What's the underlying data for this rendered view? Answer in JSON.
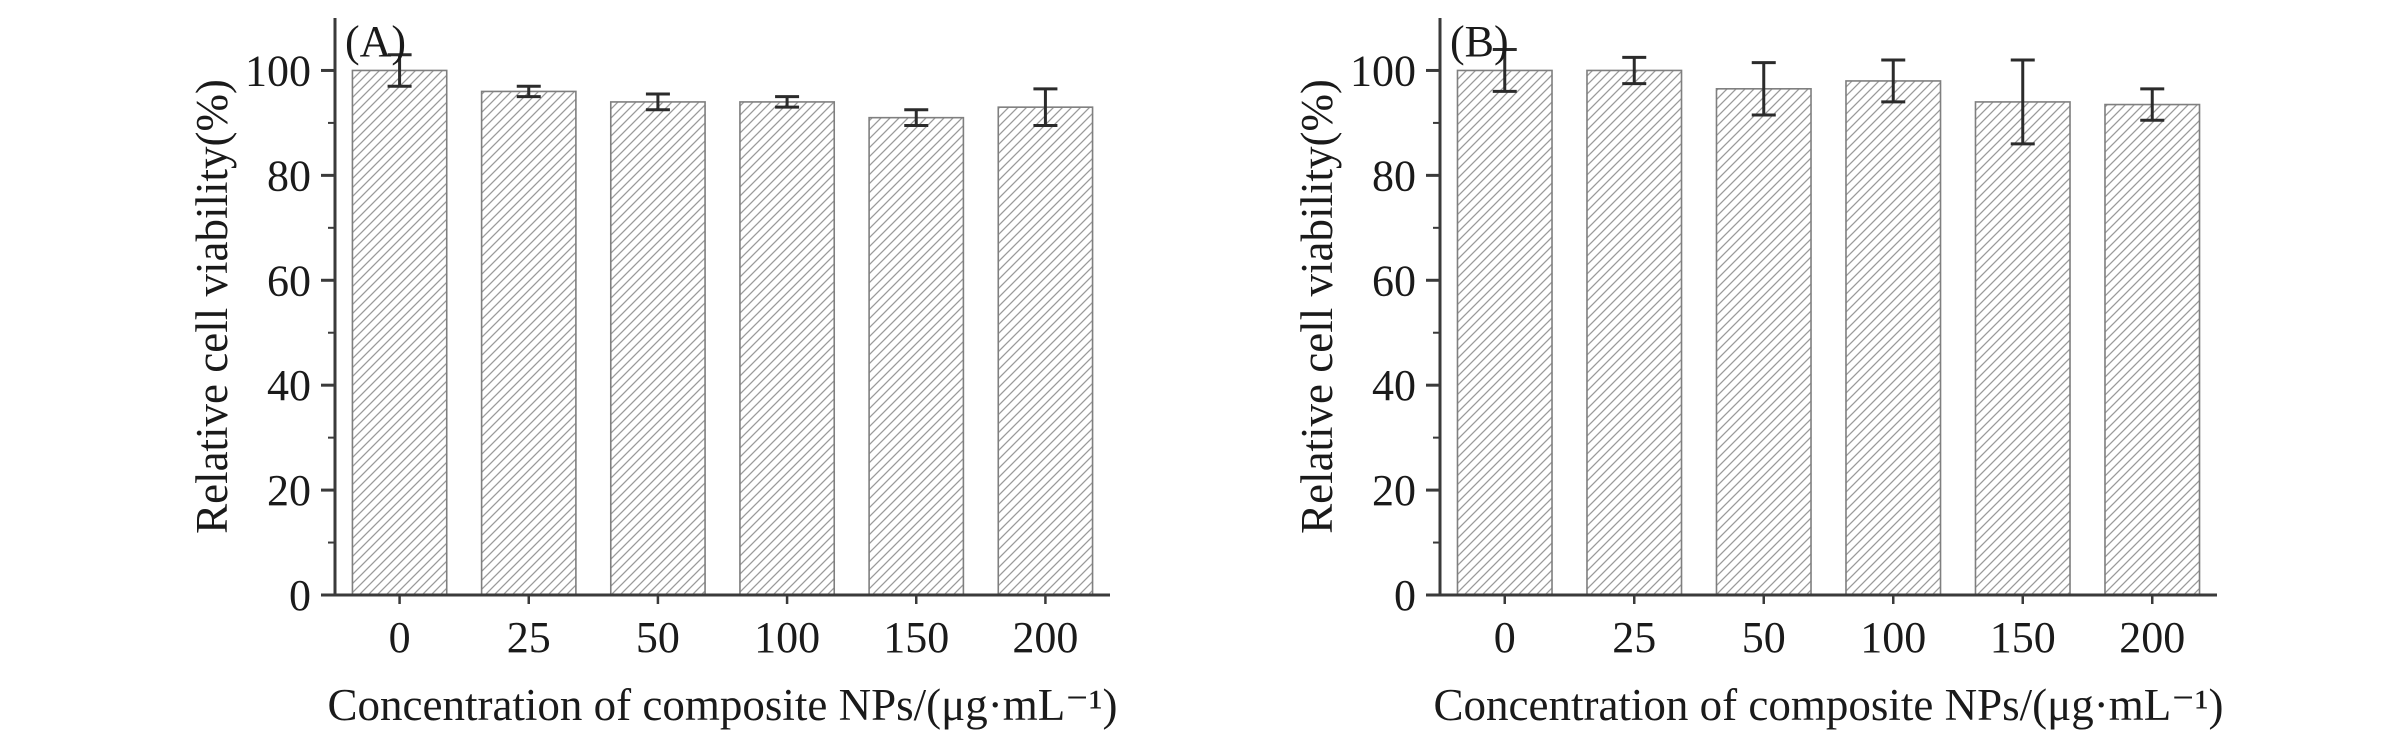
{
  "figure": {
    "background": "#ffffff"
  },
  "colors": {
    "axis": "#3a3a3a",
    "text": "#1a1a1a",
    "bar_edge": "#7f7f7f",
    "bar_hatch": "#9a9a9a",
    "error_bar": "#2b2b2b"
  },
  "chart_data": [
    {
      "type": "bar",
      "panel_label": "(A)",
      "title": "",
      "xlabel": "Concentration of composite NPs/(μg·mL⁻¹)",
      "ylabel": "Relative cell viability(%)",
      "categories": [
        "0",
        "25",
        "50",
        "100",
        "150",
        "200"
      ],
      "values": [
        100,
        96,
        94,
        94,
        91,
        93
      ],
      "errors": [
        3,
        1,
        1.5,
        1,
        1.5,
        3.5
      ],
      "yticks": [
        0,
        20,
        40,
        60,
        80,
        100
      ],
      "ylim": [
        0,
        110
      ],
      "grid": false,
      "legend": "none",
      "bar_style": "white with diagonal hatch"
    },
    {
      "type": "bar",
      "panel_label": "(B)",
      "title": "",
      "xlabel": "Concentration of composite NPs/(μg·mL⁻¹)",
      "ylabel": "Relative cell viability(%)",
      "categories": [
        "0",
        "25",
        "50",
        "100",
        "150",
        "200"
      ],
      "values": [
        100,
        100,
        96.5,
        98,
        94,
        93.5
      ],
      "errors": [
        4,
        2.5,
        5,
        4,
        8,
        3
      ],
      "yticks": [
        0,
        20,
        40,
        60,
        80,
        100
      ],
      "ylim": [
        0,
        110
      ],
      "grid": false,
      "legend": "none",
      "bar_style": "white with diagonal hatch"
    }
  ]
}
